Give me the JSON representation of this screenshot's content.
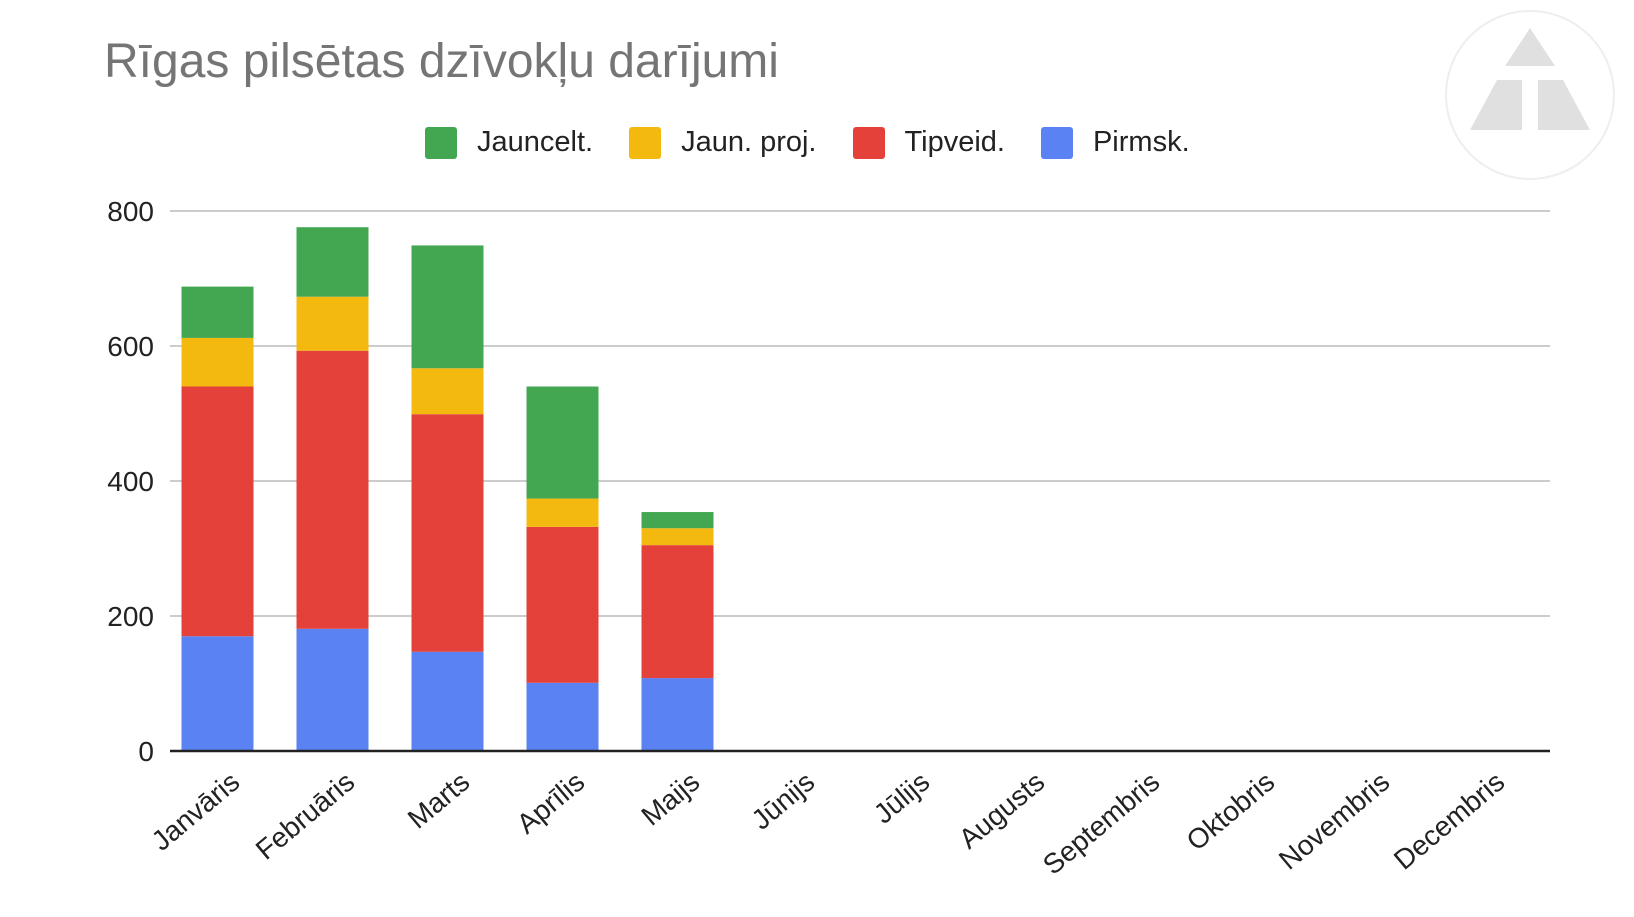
{
  "chart_data": {
    "type": "bar",
    "stacked": true,
    "title": "Rīgas pilsētas dzīvokļu darījumi",
    "xlabel": "",
    "ylabel": "",
    "ylim": [
      0,
      800
    ],
    "yticks": [
      0,
      200,
      400,
      600,
      800
    ],
    "grid": true,
    "legend_position": "top",
    "categories": [
      "Janvāris",
      "Februāris",
      "Marts",
      "Aprīlis",
      "Maijs",
      "Jūnijs",
      "Jūlijs",
      "Augusts",
      "Septembris",
      "Oktobris",
      "Novembris",
      "Decembris"
    ],
    "series": [
      {
        "name": "Pirmsk.",
        "color": "#5a82f2",
        "values": [
          170,
          181,
          147,
          101,
          108,
          null,
          null,
          null,
          null,
          null,
          null,
          null
        ]
      },
      {
        "name": "Tipveid.",
        "color": "#e3413a",
        "values": [
          370,
          412,
          352,
          231,
          197,
          null,
          null,
          null,
          null,
          null,
          null,
          null
        ]
      },
      {
        "name": "Jaun. proj.",
        "color": "#f4b90e",
        "values": [
          72,
          80,
          68,
          42,
          25,
          null,
          null,
          null,
          null,
          null,
          null,
          null
        ]
      },
      {
        "name": "Jauncelt.",
        "color": "#43a752",
        "values": [
          76,
          103,
          182,
          166,
          24,
          null,
          null,
          null,
          null,
          null,
          null,
          null
        ]
      }
    ],
    "legend_order": [
      "Jauncelt.",
      "Jaun. proj.",
      "Tipveid.",
      "Pirmsk."
    ]
  },
  "colors": {
    "grid": "#cccccc",
    "axis": "#222222",
    "title": "#757575"
  },
  "logo": {
    "icon": "triangle-logo-icon"
  }
}
